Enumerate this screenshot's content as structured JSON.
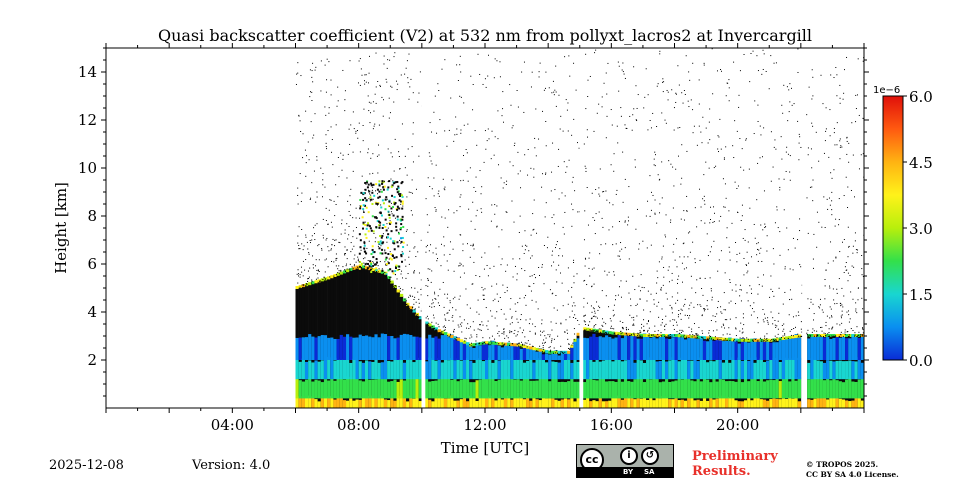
{
  "chart_data": {
    "type": "heatmap",
    "title": "Quasi backscatter coefficient (V2) at 532 nm from pollyxt_lacros2 at Invercargill",
    "xlabel": "Time [UTC]",
    "ylabel": "Height [km]",
    "xlim_hours": [
      0,
      24
    ],
    "ylim_km": [
      0,
      15
    ],
    "x_ticks": [
      {
        "hour": 4,
        "label": "04:00"
      },
      {
        "hour": 8,
        "label": "08:00"
      },
      {
        "hour": 12,
        "label": "12:00"
      },
      {
        "hour": 16,
        "label": "16:00"
      },
      {
        "hour": 20,
        "label": "20:00"
      }
    ],
    "y_ticks": [
      {
        "km": 2,
        "label": "2"
      },
      {
        "km": 4,
        "label": "4"
      },
      {
        "km": 6,
        "label": "6"
      },
      {
        "km": 8,
        "label": "8"
      },
      {
        "km": 10,
        "label": "10"
      },
      {
        "km": 12,
        "label": "12"
      },
      {
        "km": 14,
        "label": "14"
      }
    ],
    "colorbar": {
      "range": [
        0.0,
        6.0
      ],
      "exponent_label": "1e−6",
      "ticks": [
        {
          "value": 0.0,
          "label": "0.0"
        },
        {
          "value": 1.5,
          "label": "1.5"
        },
        {
          "value": 3.0,
          "label": "3.0"
        },
        {
          "value": 4.5,
          "label": "4.5"
        },
        {
          "value": 6.0,
          "label": "6.0"
        }
      ],
      "colors": [
        "#0a2bd6",
        "#0a8ff0",
        "#19d6d0",
        "#33e04a",
        "#b8ef0c",
        "#fff21a",
        "#ffb312",
        "#ff5a10",
        "#e0100a"
      ]
    },
    "data_start_hour": 6.0,
    "gaps_hours": [
      10.05,
      15.05,
      22.1
    ],
    "boundary_layer_top_km": [
      [
        6.0,
        5.0
      ],
      [
        7.0,
        5.4
      ],
      [
        8.0,
        5.9
      ],
      [
        8.8,
        5.6
      ],
      [
        9.5,
        4.3
      ],
      [
        10.0,
        3.6
      ],
      [
        10.5,
        3.2
      ],
      [
        11.0,
        2.9
      ],
      [
        11.5,
        2.6
      ],
      [
        12.0,
        2.7
      ],
      [
        13.0,
        2.6
      ],
      [
        14.0,
        2.3
      ],
      [
        14.6,
        2.3
      ],
      [
        15.0,
        3.3
      ],
      [
        16.0,
        3.1
      ],
      [
        17.0,
        3.0
      ],
      [
        18.0,
        3.0
      ],
      [
        19.0,
        2.9
      ],
      [
        20.0,
        2.8
      ],
      [
        21.0,
        2.8
      ],
      [
        22.0,
        3.0
      ],
      [
        23.0,
        3.0
      ],
      [
        24.0,
        3.0
      ]
    ],
    "signal_bands": [
      {
        "from_km": 0.0,
        "to_km": 0.4,
        "value": 4.0
      },
      {
        "from_km": 0.4,
        "to_km": 1.2,
        "value": 2.3
      },
      {
        "from_km": 1.2,
        "to_km": 2.0,
        "value": 1.2
      },
      {
        "from_km": 2.0,
        "to_km": 3.0,
        "value": 0.4
      }
    ],
    "cloud_layers": [
      {
        "start_hour": 8.0,
        "end_hour": 9.4,
        "base_km": 5.6,
        "top_km": 9.5,
        "value": 2.8
      }
    ]
  },
  "footer": {
    "date": "2025-12-08",
    "version": "Version: 4.0",
    "license_by": "BY",
    "license_sa": "SA",
    "preliminary_line1": "Preliminary",
    "preliminary_line2": "Results.",
    "copyright_line1": "© TROPOS 2025.",
    "copyright_line2": "CC BY SA 4.0 License."
  },
  "icons": [
    "cc-icon",
    "by-attribution-icon",
    "sa-sharealike-icon"
  ]
}
